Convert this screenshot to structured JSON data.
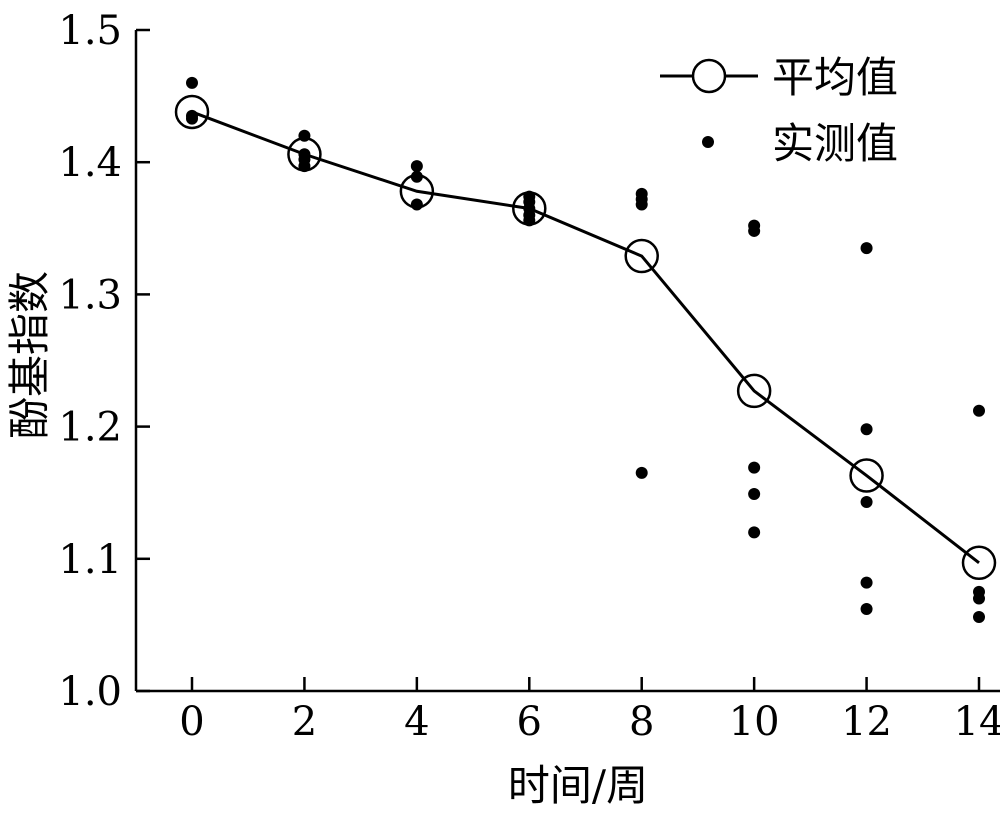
{
  "chart_data": {
    "type": "line",
    "xlabel": "时间/周",
    "ylabel": "酚基指数",
    "xlim": [
      0,
      14
    ],
    "ylim": [
      1.0,
      1.5
    ],
    "x_ticks": [
      "0",
      "2",
      "4",
      "6",
      "8",
      "10",
      "12",
      "14"
    ],
    "y_ticks": [
      "1.0",
      "1.1",
      "1.2",
      "1.3",
      "1.4",
      "1.5"
    ],
    "grid": false,
    "legend_position": "top-right",
    "series": [
      {
        "name": "平均值",
        "kind": "line-open-circles",
        "x": [
          0,
          2,
          4,
          6,
          8,
          10,
          12,
          14
        ],
        "y": [
          1.438,
          1.406,
          1.378,
          1.365,
          1.329,
          1.227,
          1.163,
          1.097
        ]
      },
      {
        "name": "实测值",
        "kind": "dots",
        "points": [
          [
            0,
            1.46
          ],
          [
            0,
            1.435
          ],
          [
            0,
            1.433
          ],
          [
            2,
            1.42
          ],
          [
            2,
            1.406
          ],
          [
            2,
            1.402
          ],
          [
            2,
            1.397
          ],
          [
            4,
            1.397
          ],
          [
            4,
            1.389
          ],
          [
            4,
            1.368
          ],
          [
            6,
            1.374
          ],
          [
            6,
            1.37
          ],
          [
            6,
            1.365
          ],
          [
            6,
            1.36
          ],
          [
            6,
            1.356
          ],
          [
            8,
            1.376
          ],
          [
            8,
            1.372
          ],
          [
            8,
            1.368
          ],
          [
            8,
            1.165
          ],
          [
            10,
            1.352
          ],
          [
            10,
            1.348
          ],
          [
            10,
            1.169
          ],
          [
            10,
            1.149
          ],
          [
            10,
            1.12
          ],
          [
            12,
            1.335
          ],
          [
            12,
            1.198
          ],
          [
            12,
            1.143
          ],
          [
            12,
            1.082
          ],
          [
            12,
            1.062
          ],
          [
            14,
            1.212
          ],
          [
            14,
            1.075
          ],
          [
            14,
            1.07
          ],
          [
            14,
            1.056
          ]
        ]
      }
    ]
  }
}
